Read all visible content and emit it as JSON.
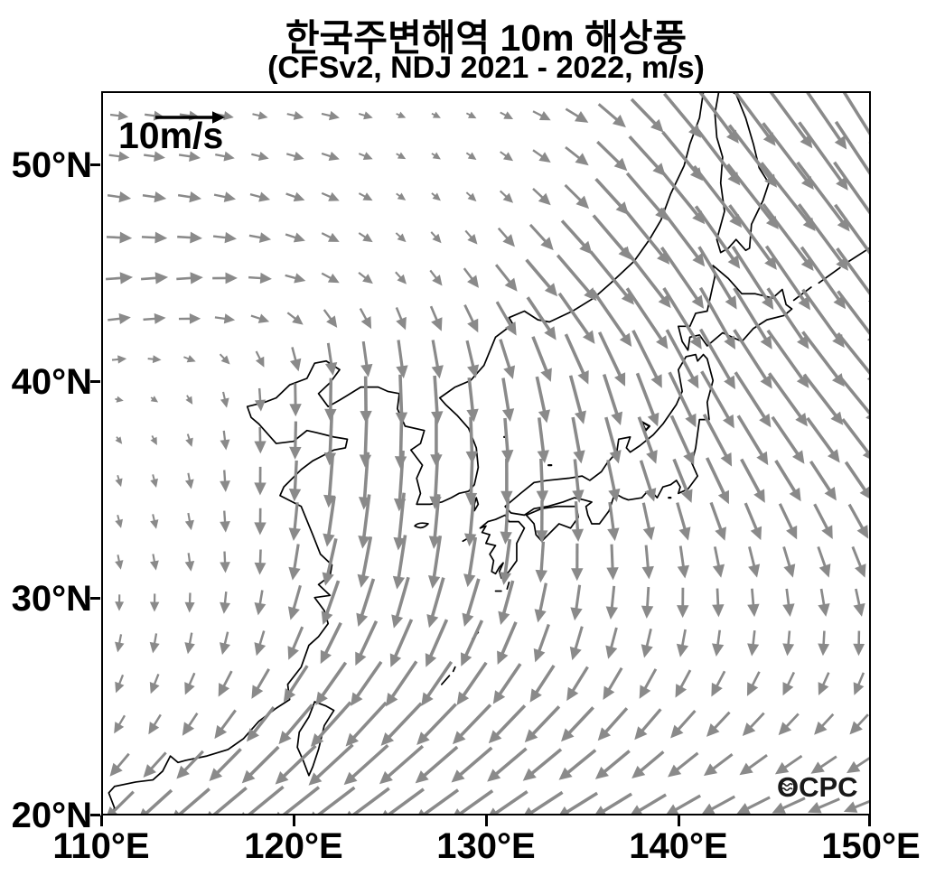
{
  "title": {
    "line1": "한국주변해역 10m 해상풍",
    "line2": "(CFSv2, NDJ 2021 - 2022, m/s)"
  },
  "reference_arrow": {
    "label": "10m/s",
    "value_ms": 10
  },
  "watermark": {
    "text": "OCPC"
  },
  "axes": {
    "x_ticks": [
      "110°E",
      "120°E",
      "130°E",
      "140°E",
      "150°E"
    ],
    "y_ticks": [
      "50°N",
      "40°N",
      "30°N",
      "20°N"
    ],
    "x_tick_values_deg_east": [
      110,
      120,
      130,
      140,
      150
    ],
    "y_tick_values_deg_north": [
      50,
      40,
      30,
      20
    ],
    "lon_range": [
      110,
      150
    ],
    "lat_range": [
      20,
      53.4
    ]
  },
  "colors": {
    "arrow": "#8a8a8a",
    "reference_arrow": "#000000",
    "coastline": "#000000",
    "text": "#000000",
    "background": "#ffffff"
  },
  "chart_data": {
    "type": "quiver",
    "title": "한국주변해역 10m 해상풍",
    "subtitle": "(CFSv2, NDJ 2021 - 2022, m/s)",
    "units": "m/s",
    "reference_vector_ms": 10,
    "lon_range": [
      110,
      150
    ],
    "lat_range": [
      20,
      53.4
    ],
    "grid_lons": [
      110,
      114,
      118,
      122,
      126,
      130,
      134,
      138,
      142,
      146,
      150
    ],
    "grid_lats": [
      52,
      48,
      44,
      40,
      36,
      32,
      28,
      24,
      20
    ],
    "u": [
      [
        2.5,
        3.0,
        2.2,
        2.6,
        1.2,
        1.5,
        3.0,
        4.5,
        6.0,
        7.0,
        6.0
      ],
      [
        3.5,
        3.5,
        3.0,
        2.5,
        1.2,
        1.5,
        3.0,
        6.0,
        7.0,
        8.0,
        7.0
      ],
      [
        4.0,
        4.0,
        3.5,
        2.5,
        1.5,
        2.5,
        6.0,
        7.0,
        5.0,
        6.0,
        6.0
      ],
      [
        1.5,
        1.0,
        0.3,
        0.0,
        0.5,
        1.0,
        2.0,
        3.0,
        5.0,
        6.0,
        6.0
      ],
      [
        0.5,
        0.5,
        0.0,
        -0.5,
        -0.5,
        0.0,
        0.5,
        2.0,
        3.5,
        4.0,
        4.0
      ],
      [
        0.5,
        0.5,
        0.0,
        -1.5,
        -1.0,
        -1.0,
        0.0,
        0.5,
        1.0,
        1.5,
        2.0
      ],
      [
        -0.5,
        -0.5,
        -1.0,
        -3.0,
        -3.0,
        -3.0,
        -1.5,
        -1.0,
        -0.5,
        -0.3,
        0.0
      ],
      [
        -1.5,
        -2.0,
        -4.0,
        -6.0,
        -6.0,
        -5.5,
        -5.0,
        -4.0,
        -3.5,
        -3.0,
        -2.8
      ],
      [
        -4.0,
        -6.0,
        -7.0,
        -7.0,
        -6.5,
        -6.0,
        -6.0,
        -5.5,
        -5.0,
        -5.0,
        -4.5
      ]
    ],
    "v": [
      [
        -0.3,
        -0.4,
        -0.5,
        -0.6,
        -0.6,
        -0.8,
        -1.5,
        -4.5,
        -8.0,
        -9.5,
        -10.0
      ],
      [
        -0.5,
        -0.5,
        -0.8,
        -1.2,
        -1.0,
        -1.5,
        -3.0,
        -7.0,
        -9.0,
        -10.0,
        -10.0
      ],
      [
        0.5,
        0.5,
        0.0,
        -1.5,
        -2.0,
        -3.5,
        -7.0,
        -9.0,
        -9.0,
        -9.0,
        -8.0
      ],
      [
        0.3,
        -0.8,
        -3.0,
        -6.0,
        -7.0,
        -6.0,
        -7.0,
        -8.0,
        -8.5,
        -8.0,
        -7.0
      ],
      [
        -1.5,
        -2.0,
        -4.0,
        -8.0,
        -9.0,
        -6.5,
        -6.5,
        -6.0,
        -7.0,
        -6.0,
        -5.5
      ],
      [
        -2.0,
        -2.5,
        -3.5,
        -7.0,
        -8.0,
        -7.0,
        -5.5,
        -5.0,
        -4.5,
        -4.5,
        -4.5
      ],
      [
        -2.5,
        -3.0,
        -3.5,
        -6.0,
        -7.0,
        -6.5,
        -5.0,
        -4.2,
        -3.8,
        -3.6,
        -3.6
      ],
      [
        -2.5,
        -3.0,
        -5.0,
        -6.5,
        -6.0,
        -5.5,
        -5.0,
        -4.5,
        -3.5,
        -3.0,
        -2.8
      ],
      [
        -4.0,
        -5.0,
        -5.5,
        -5.0,
        -4.5,
        -4.0,
        -3.5,
        -3.0,
        -2.5,
        -2.0,
        -1.5
      ]
    ]
  }
}
